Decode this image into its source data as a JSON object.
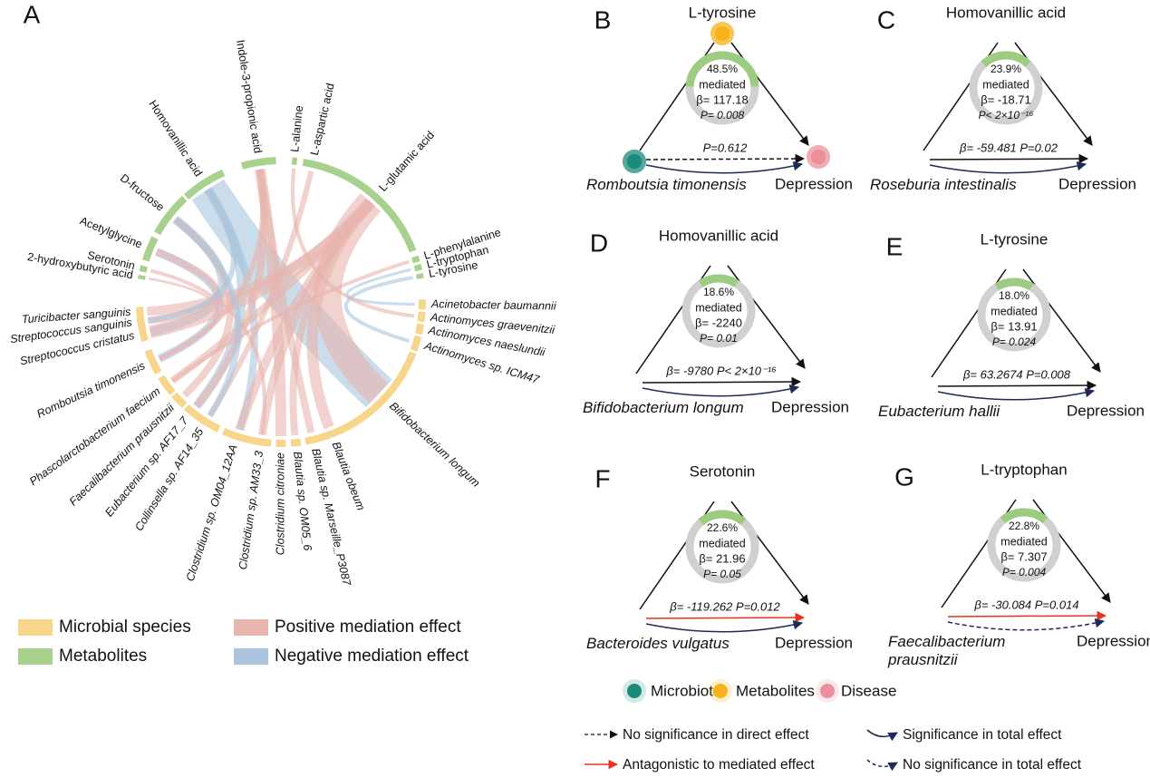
{
  "panel_a": {
    "label": "A",
    "metabolites": [
      "2-hydroxybutyric acid",
      "Serotonin",
      "Acetylglycine",
      "D-fructose",
      "Homovanillic acid",
      "Indole-3-propionic acid",
      "L-alanine",
      "L-aspartic acid",
      "L-glutamic acid",
      "L-phenylalanine",
      "L-tryptophan",
      "L-tyrosine"
    ],
    "species": [
      "Acinetobacter baumannii",
      "Actinomyces graevenitzii",
      "Actinomyces naeslundii",
      "Actinomyces sp. ICM47",
      "Bifidobacterium longum",
      "Blautia obeum",
      "Blautia sp. Marseille_P3087",
      "Blautia sp. OM05_6",
      "Clostridium citroniae",
      "Clostridium sp. AM33_3",
      "Clostridium sp. OM04_12AA",
      "Collinsella sp. AF14_35",
      "Eubacterium sp. AF17_7",
      "Faecalibacterium prausnitzii",
      "Phascolarctobacterium faecium",
      "Romboutsia timonensis",
      "Streptococcus cristatus",
      "Streptococcus sanguinis",
      "Turicibacter sanguinis"
    ],
    "legend": [
      {
        "label": "Microbial species",
        "color": "#f7d58b"
      },
      {
        "label": "Metabolites",
        "color": "#a9d18e"
      },
      {
        "label": "Positive mediation effect",
        "color": "#e8b4ae"
      },
      {
        "label": "Negative mediation effect",
        "color": "#a9c4dc"
      }
    ]
  },
  "panels": [
    {
      "label": "B",
      "metabolite": "L-tyrosine",
      "mediated_percent": {
        "value": 48.5,
        "label": "48.5%"
      },
      "mediated": "mediated",
      "beta": "β= 117.18",
      "p": "P= 0.008",
      "microbe": "Romboutsia timonensis",
      "disease": "Depression",
      "direct": "P=0.612",
      "direct_color": "#111111",
      "direct_dashed": true,
      "total_dashed": false
    },
    {
      "label": "C",
      "metabolite": "Homovanillic acid",
      "mediated_percent": {
        "value": 23.9,
        "label": "23.9%"
      },
      "mediated": "mediated",
      "beta": "β= -18.71",
      "p": "P< 2×10⁻¹⁶",
      "microbe": "Roseburia intestinalis",
      "disease": "Depression",
      "direct": "β= -59.481   P=0.02",
      "direct_color": "#111111",
      "direct_dashed": false,
      "total_dashed": false
    },
    {
      "label": "D",
      "metabolite": "Homovanillic acid",
      "mediated_percent": {
        "value": 18.6,
        "label": "18.6%"
      },
      "mediated": "mediated",
      "beta": "β= -2240",
      "p": "P= 0.01",
      "microbe": "Bifidobacterium longum",
      "disease": "Depression",
      "direct": "β= -9780   P< 2×10⁻¹⁶",
      "direct_color": "#111111",
      "direct_dashed": false,
      "total_dashed": false
    },
    {
      "label": "E",
      "metabolite": "L-tyrosine",
      "mediated_percent": {
        "value": 18.0,
        "label": "18.0%"
      },
      "mediated": "mediated",
      "beta": "β= 13.91",
      "p": "P= 0.024",
      "microbe": "Eubacterium hallii",
      "disease": "Depression",
      "direct": "β= 63.2674   P=0.008",
      "direct_color": "#111111",
      "direct_dashed": false,
      "total_dashed": false
    },
    {
      "label": "F",
      "metabolite": "Serotonin",
      "mediated_percent": {
        "value": 22.6,
        "label": "22.6%"
      },
      "mediated": "mediated",
      "beta": "β= 21.96",
      "p": "P= 0.05",
      "microbe": "Bacteroides vulgatus",
      "disease": "Depression",
      "direct": "β= -119.262   P=0.012",
      "direct_color": "#e8321e",
      "direct_dashed": false,
      "total_dashed": false
    },
    {
      "label": "G",
      "metabolite": "L-tryptophan",
      "mediated_percent": {
        "value": 22.8,
        "label": "22.8%"
      },
      "mediated": "mediated",
      "beta": "β= 7.307",
      "p": "P= 0.004",
      "microbe": "Faecalibacterium prausnitzii",
      "disease": "Depression",
      "direct": "β= -30.084   P=0.014",
      "direct_color": "#e8321e",
      "direct_dashed": false,
      "total_dashed": true
    }
  ],
  "legend": {
    "nodes": [
      {
        "label": "Microbiota",
        "color": "#1a8a7a"
      },
      {
        "label": "Metabolites",
        "color": "#f5b21a"
      },
      {
        "label": "Disease",
        "color": "#ec8f9a"
      }
    ],
    "lines": [
      "No significance in direct effect",
      "Antagonistic to mediated effect",
      "Significance in total effect",
      "No significance in total effect"
    ]
  }
}
